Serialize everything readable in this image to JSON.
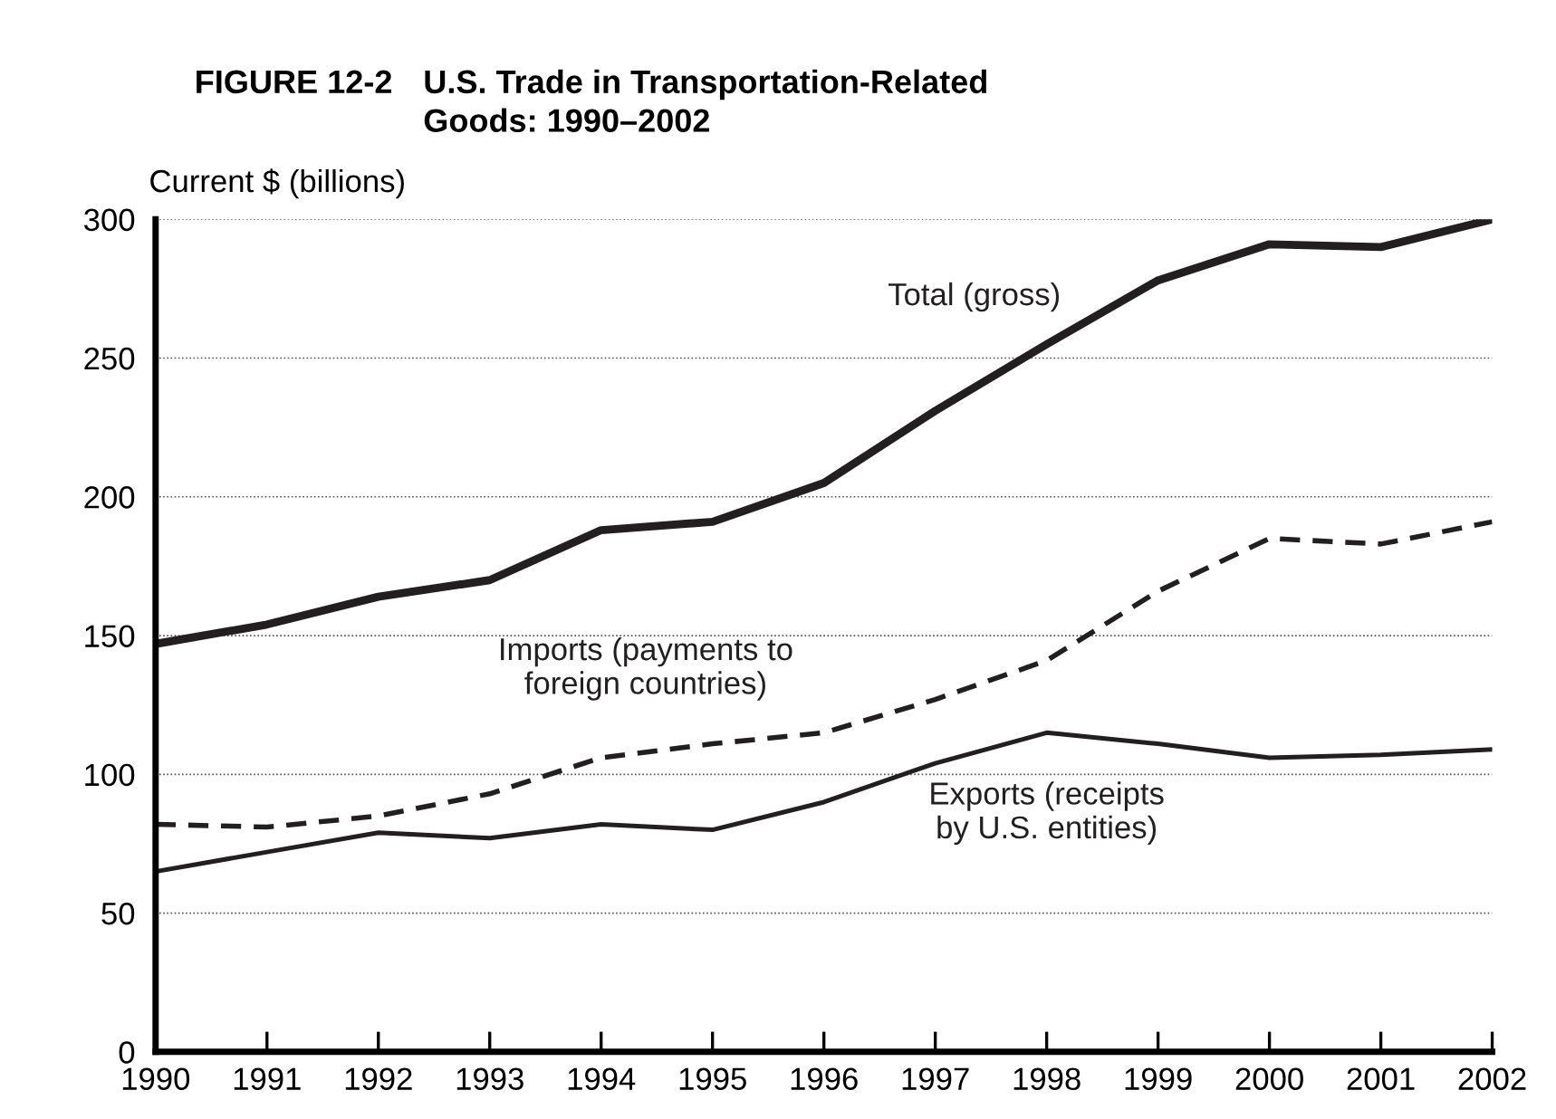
{
  "chart_data": {
    "type": "line",
    "title": "FIGURE 12-2",
    "subtitle": "U.S. Trade in Transportation-Related\nGoods: 1990–2002",
    "ylabel": "Current $ (billions)",
    "categories": [
      "1990",
      "1991",
      "1992",
      "1993",
      "1994",
      "1995",
      "1996",
      "1997",
      "1998",
      "1999",
      "2000",
      "2001",
      "2002"
    ],
    "series": [
      {
        "name": "Total (gross)",
        "color": "#231f20",
        "line_style": "solid",
        "values": [
          147,
          154,
          164,
          170,
          188,
          191,
          205,
          231,
          255,
          278,
          291,
          290,
          300
        ]
      },
      {
        "name": "Imports (payments to\nforeign countries)",
        "color": "#231f20",
        "line_style": "dashed",
        "values": [
          82,
          81,
          85,
          93,
          106,
          111,
          115,
          127,
          141,
          166,
          185,
          183,
          191
        ]
      },
      {
        "name": "Exports (receipts\nby U.S. entities)",
        "color": "#231f20",
        "line_style": "solid",
        "values": [
          65,
          72,
          79,
          77,
          82,
          80,
          90,
          104,
          115,
          111,
          106,
          107,
          109
        ]
      }
    ],
    "ylim": [
      0,
      300
    ],
    "yticks": [
      0,
      50,
      100,
      150,
      200,
      250,
      300
    ],
    "grid": "y",
    "legend": false,
    "marker": "none"
  }
}
